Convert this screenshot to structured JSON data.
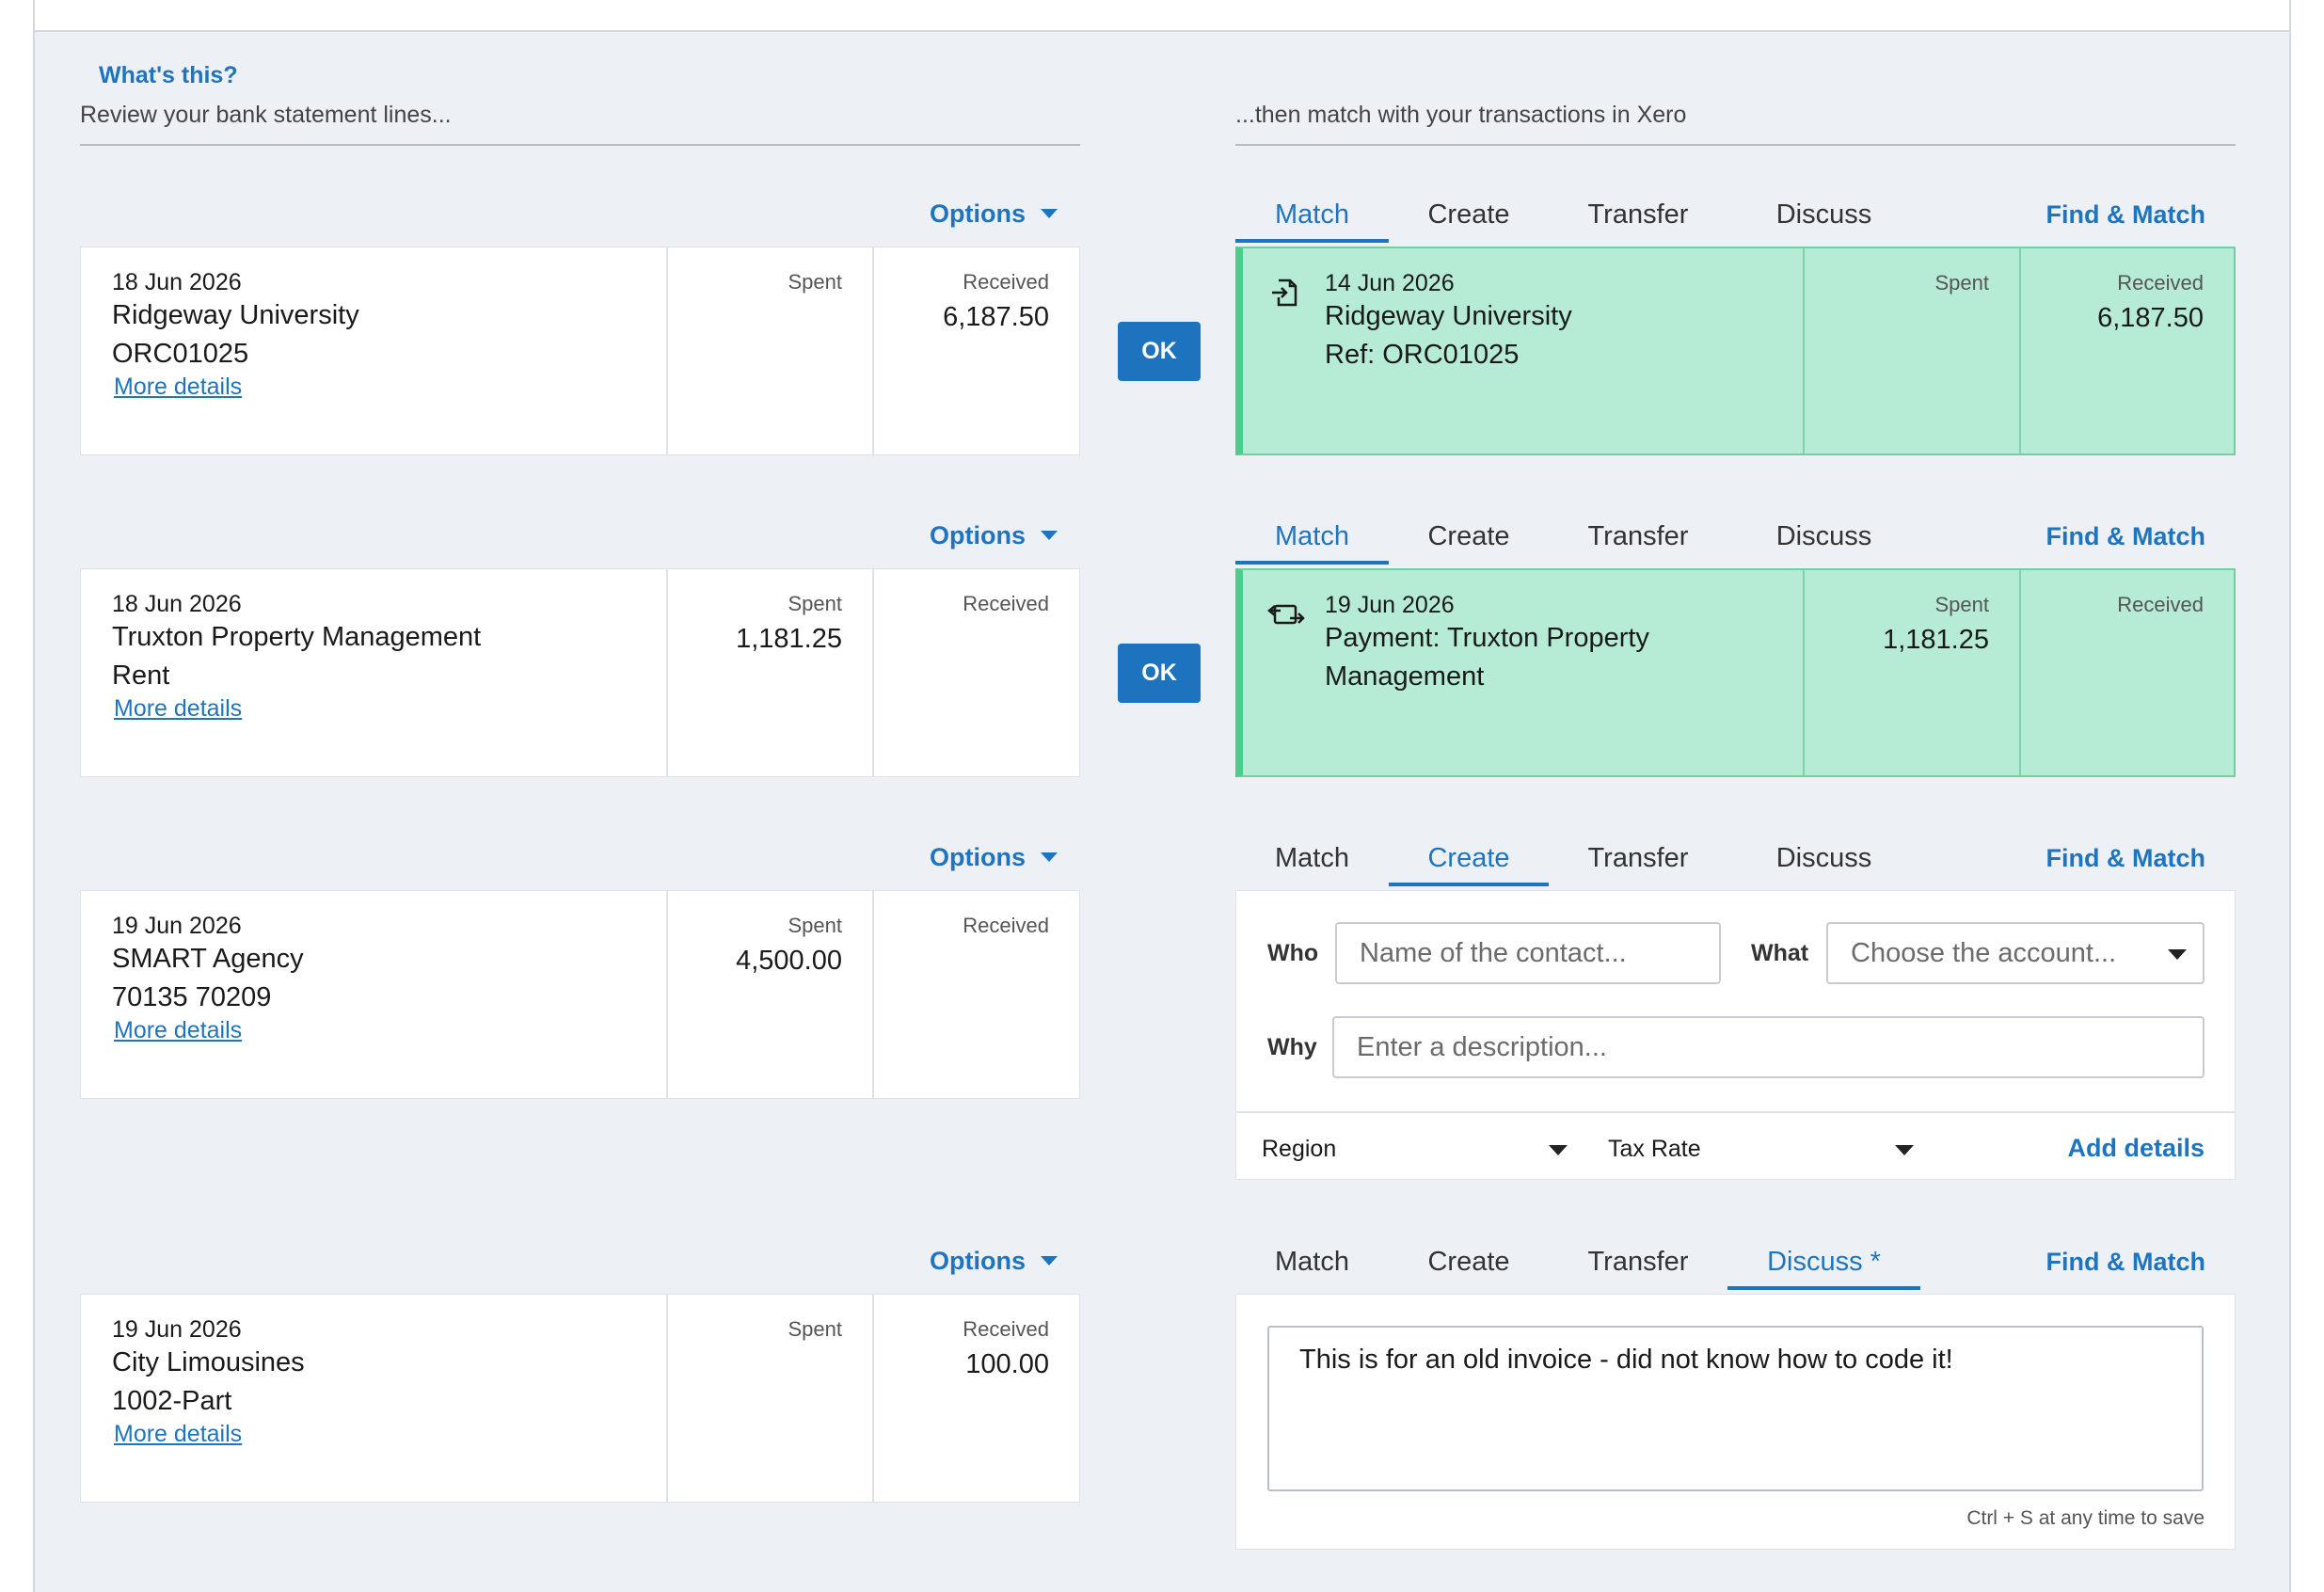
{
  "header": {
    "whats_this": "What's this?",
    "left_title": "Review your bank statement lines...",
    "right_title": "...then match with your transactions in Xero"
  },
  "common": {
    "options_label": "Options",
    "spent_label": "Spent",
    "received_label": "Received",
    "more_details": "More details",
    "ok_label": "OK",
    "find_match": "Find & Match",
    "tabs": {
      "match": "Match",
      "create": "Create",
      "transfer": "Transfer",
      "discuss": "Discuss",
      "discuss_modified": "Discuss *"
    }
  },
  "rows": [
    {
      "statement": {
        "date": "18 Jun 2026",
        "payee": "Ridgeway University",
        "reference": "ORC01025",
        "spent": "",
        "received": "6,187.50"
      },
      "active_tab": "Match",
      "match": {
        "icon": "invoice-import-icon",
        "date": "14 Jun 2026",
        "line1": "Ridgeway University",
        "line2": "Ref: ORC01025",
        "spent": "",
        "received": "6,187.50"
      }
    },
    {
      "statement": {
        "date": "18 Jun 2026",
        "payee": "Truxton Property Management",
        "reference": "Rent",
        "spent": "1,181.25",
        "received": ""
      },
      "active_tab": "Match",
      "match": {
        "icon": "payment-transfer-icon",
        "date": "19 Jun 2026",
        "line1": "Payment: Truxton Property",
        "line2": "Management",
        "spent": "1,181.25",
        "received": ""
      }
    },
    {
      "statement": {
        "date": "19 Jun 2026",
        "payee": "SMART Agency",
        "reference": "70135 70209",
        "spent": "4,500.00",
        "received": ""
      },
      "active_tab": "Create",
      "create": {
        "who_label": "Who",
        "who_placeholder": "Name of the contact...",
        "what_label": "What",
        "what_placeholder": "Choose the account...",
        "why_label": "Why",
        "why_placeholder": "Enter a description...",
        "region_label": "Region",
        "tax_rate_label": "Tax Rate",
        "add_details": "Add details"
      }
    },
    {
      "statement": {
        "date": "19 Jun 2026",
        "payee": "City Limousines",
        "reference": "1002-Part",
        "spent": "",
        "received": "100.00"
      },
      "active_tab": "Discuss",
      "discuss": {
        "text": "This is for an old invoice - did not know how to code it!",
        "hint": "Ctrl + S at any time to save"
      }
    }
  ],
  "colors": {
    "accent": "#1f74bf",
    "match_bg": "#b6ecd6",
    "match_border": "#4fcb8c",
    "panel_bg": "#edf1f6"
  }
}
